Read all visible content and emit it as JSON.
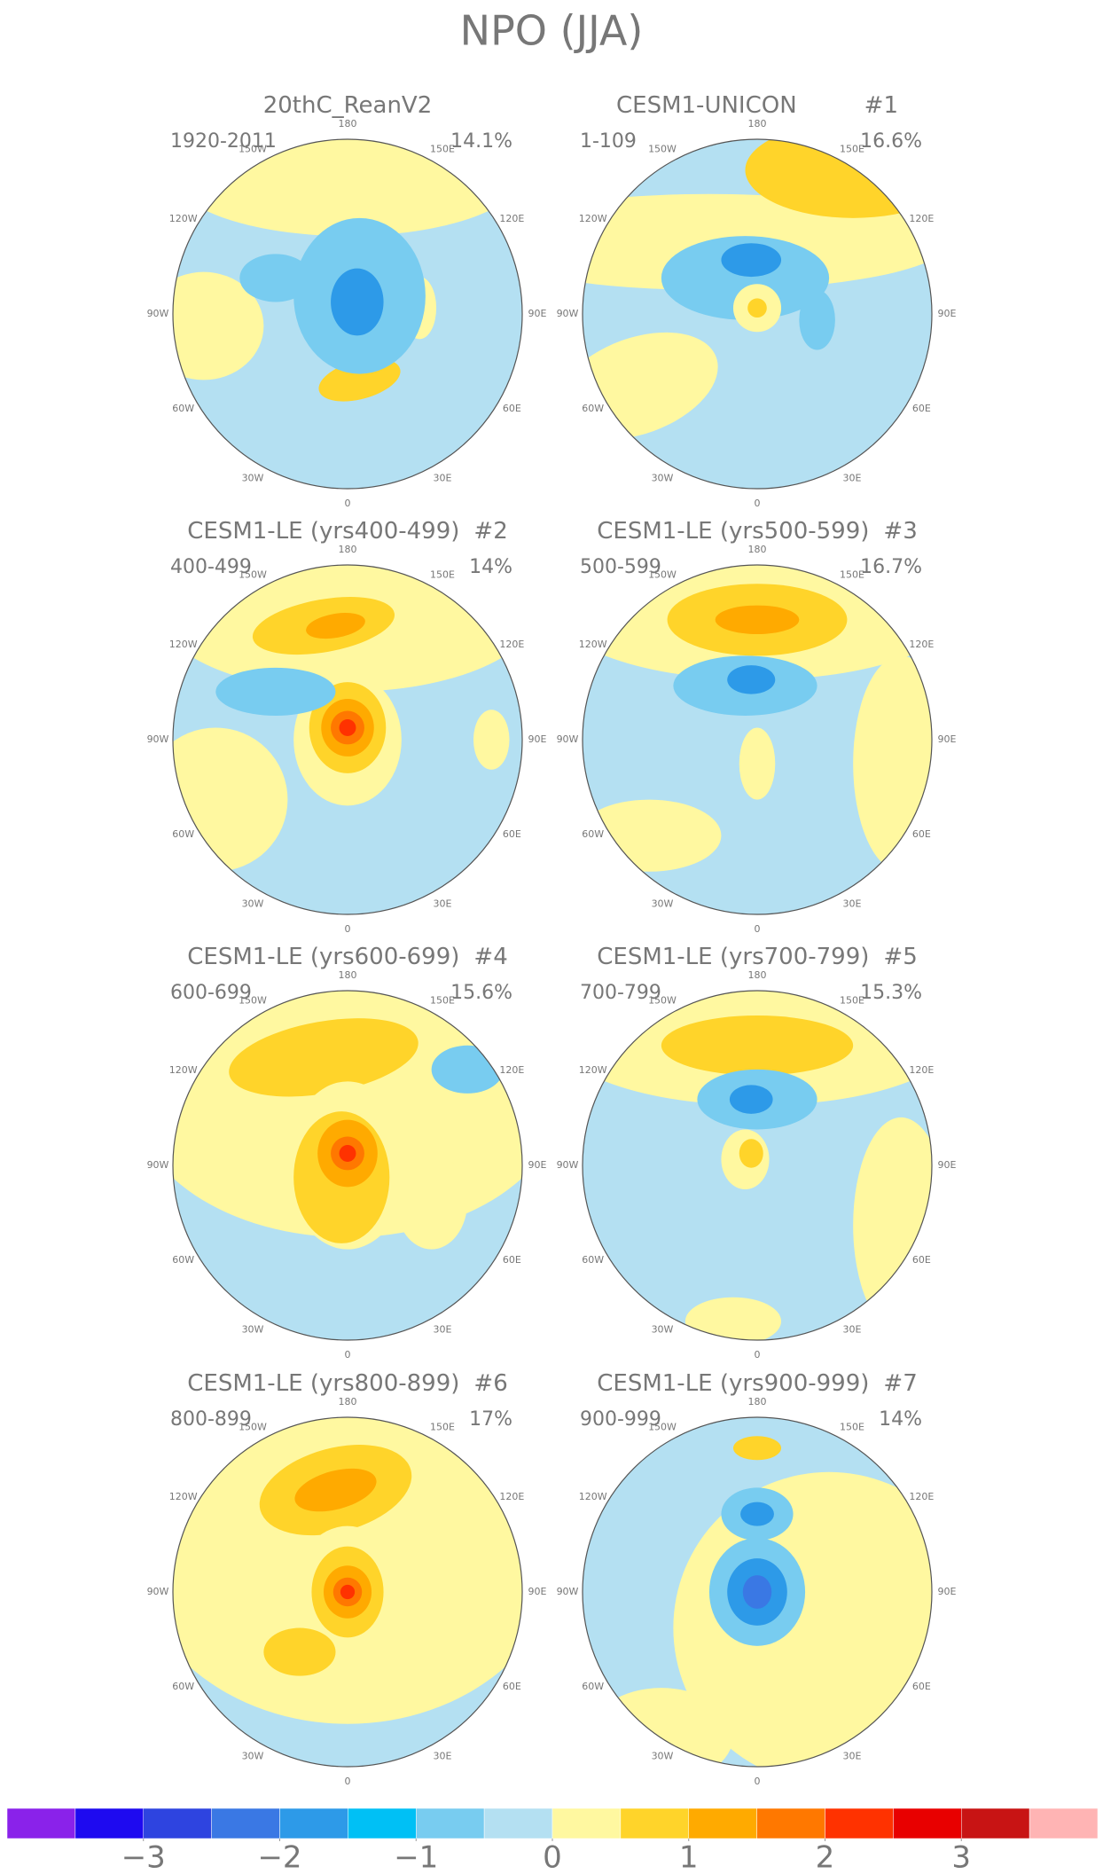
{
  "title": "NPO (JJA)",
  "longitude_labels": [
    "0",
    "30E",
    "60E",
    "90E",
    "120E",
    "150E",
    "180",
    "150W",
    "120W",
    "90W",
    "60W",
    "30W"
  ],
  "panels": [
    {
      "title": "20thC_ReanV2",
      "period": "1920-2011",
      "percent": "14.1%"
    },
    {
      "title": "CESM1-UNICON",
      "number": "#1",
      "period": "1-109",
      "percent": "16.6%"
    },
    {
      "title": "CESM1-LE (yrs400-499)",
      "number": "#2",
      "period": "400-499",
      "percent": "14%"
    },
    {
      "title": "CESM1-LE (yrs500-599)",
      "number": "#3",
      "period": "500-599",
      "percent": "16.7%"
    },
    {
      "title": "CESM1-LE (yrs600-699)",
      "number": "#4",
      "period": "600-699",
      "percent": "15.6%"
    },
    {
      "title": "CESM1-LE (yrs700-799)",
      "number": "#5",
      "period": "700-799",
      "percent": "15.3%"
    },
    {
      "title": "CESM1-LE (yrs800-899)",
      "number": "#6",
      "period": "800-899",
      "percent": "17%"
    },
    {
      "title": "CESM1-LE (yrs900-999)",
      "number": "#7",
      "period": "900-999",
      "percent": "14%"
    }
  ],
  "colorbar": {
    "colors": [
      "#8a22ea",
      "#1e0af0",
      "#2e44e0",
      "#3a78e4",
      "#2d9ae8",
      "#00c0f5",
      "#78ccf0",
      "#b4e0f2",
      "#fff8a0",
      "#ffd42a",
      "#ffaa00",
      "#ff7800",
      "#ff3200",
      "#e80000",
      "#c81414",
      "#ffb4b4"
    ],
    "lim": [
      -4,
      4
    ],
    "ticks": [
      {
        "value": -3,
        "label": "−3"
      },
      {
        "value": -2,
        "label": "−2"
      },
      {
        "value": -1,
        "label": "−1"
      },
      0,
      1,
      2,
      3
    ]
  }
}
